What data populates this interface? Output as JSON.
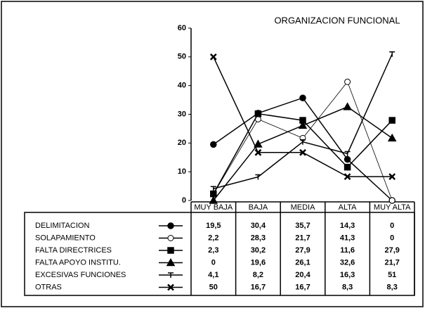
{
  "chart_data": {
    "type": "line",
    "title": "ORGANIZACION FUNCIONAL",
    "categories": [
      "MUY BAJA",
      "BAJA",
      "MEDIA",
      "ALTA",
      "MUY ALTA"
    ],
    "ylim": [
      0,
      60
    ],
    "yticks": [
      0,
      10,
      20,
      30,
      40,
      50,
      60
    ],
    "series": [
      {
        "name": "DELIMITACION",
        "color": "#000000",
        "marker": "circle",
        "values": [
          19.5,
          30.4,
          35.7,
          14.3,
          0
        ],
        "value_labels": [
          "19,5",
          "30,4",
          "35,7",
          "14,3",
          "0"
        ]
      },
      {
        "name": "SOLAPAMIENTO",
        "color": "#000000",
        "marker": "open-circle",
        "values": [
          2.2,
          28.3,
          21.7,
          41.3,
          0
        ],
        "value_labels": [
          "2,2",
          "28,3",
          "21,7",
          "41,3",
          "0"
        ]
      },
      {
        "name": "FALTA DIRECTRICES",
        "color": "#000000",
        "marker": "square",
        "values": [
          2.3,
          30.2,
          27.9,
          11.6,
          27.9
        ],
        "value_labels": [
          "2,3",
          "30,2",
          "27,9",
          "11,6",
          "27,9"
        ]
      },
      {
        "name": "FALTA APOYO INSTITU.",
        "color": "#000000",
        "marker": "triangle",
        "values": [
          0,
          19.6,
          26.1,
          32.6,
          21.7
        ],
        "value_labels": [
          "0",
          "19,6",
          "26,1",
          "32,6",
          "21,7"
        ]
      },
      {
        "name": "EXCESIVAS FUNCIONES",
        "color": "#000000",
        "marker": "star",
        "values": [
          4.1,
          8.2,
          20.4,
          16.3,
          51
        ],
        "value_labels": [
          "4,1",
          "8,2",
          "20,4",
          "16,3",
          "51"
        ]
      },
      {
        "name": "OTRAS",
        "color": "#000000",
        "marker": "cross",
        "values": [
          50,
          16.7,
          16.7,
          8.3,
          8.3
        ],
        "value_labels": [
          "50",
          "16,7",
          "16,7",
          "8,3",
          "8,3"
        ]
      }
    ]
  }
}
